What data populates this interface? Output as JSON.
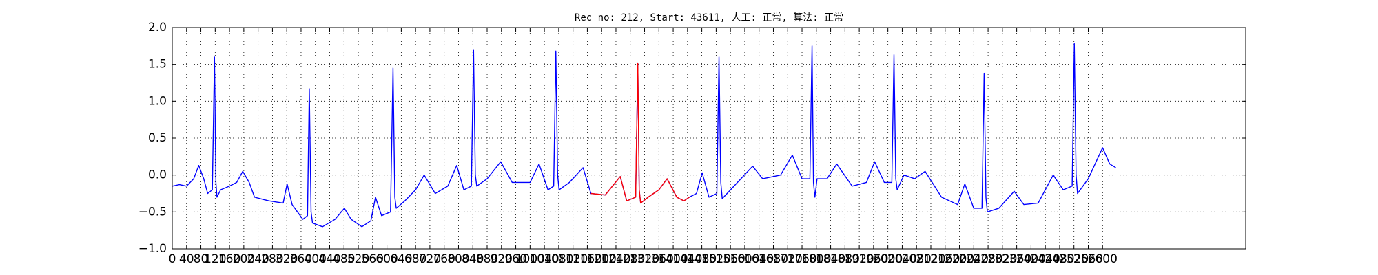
{
  "chart_data": {
    "type": "line",
    "title": "Rec_no: 212, Start: 43611, 人工: 正常, 算法: 正常",
    "xlim": [
      0,
      3000
    ],
    "ylim": [
      -1.0,
      2.0
    ],
    "xticks": [
      0,
      40,
      80,
      120,
      160,
      200,
      240,
      280,
      320,
      360,
      400,
      440,
      480,
      520,
      560,
      600,
      640,
      680,
      720,
      760,
      800,
      840,
      880,
      920,
      960,
      1000,
      1040,
      1080,
      1120,
      1160,
      1200,
      1240,
      1280,
      1320,
      1360,
      1400,
      1440,
      1480,
      1520,
      1560,
      1600,
      1640,
      1680,
      1720,
      1760,
      1800,
      1840,
      1880,
      1920,
      1960,
      2000,
      2040,
      2080,
      2120,
      2160,
      2200,
      2240,
      2280,
      2320,
      2360,
      2400,
      2440,
      2480,
      2520,
      2560,
      2600
    ],
    "yticks": [
      {
        "value": -1.0,
        "label": "−1.0"
      },
      {
        "value": -0.5,
        "label": "−0.5"
      },
      {
        "value": 0.0,
        "label": "0.0"
      },
      {
        "value": 0.5,
        "label": "0.5"
      },
      {
        "value": 1.0,
        "label": "1.0"
      },
      {
        "value": 1.5,
        "label": "1.5"
      },
      {
        "value": 2.0,
        "label": "2.0"
      }
    ],
    "grid": true,
    "series": [
      {
        "color": "#0000ff",
        "x": [
          0,
          20,
          40,
          60,
          74,
          88,
          99,
          112,
          118,
          122,
          125,
          135,
          160,
          180,
          197,
          215,
          230,
          270,
          310,
          321,
          335,
          350,
          365,
          378,
          383,
          388,
          392,
          420,
          455,
          481,
          500,
          530,
          555,
          568,
          585,
          610,
          617,
          622,
          626,
          650,
          680,
          704,
          735,
          770,
          795,
          815,
          836,
          842,
          847,
          851,
          880,
          918,
          950,
          1000,
          1025,
          1050,
          1066,
          1072,
          1077,
          1081,
          1110,
          1148,
          1170,
          1210,
          1252,
          1270,
          1295,
          1301,
          1305,
          1309,
          1330,
          1360,
          1383,
          1410,
          1430,
          1445,
          1465,
          1481,
          1500,
          1522,
          1528,
          1533,
          1537,
          1570,
          1622,
          1650,
          1700,
          1733,
          1760,
          1782,
          1788,
          1792,
          1796,
          1802,
          1830,
          1857,
          1900,
          1940,
          1963,
          1990,
          2011,
          2017,
          2022,
          2026,
          2045,
          2075,
          2104,
          2150,
          2195,
          2215,
          2240,
          2263,
          2269,
          2274,
          2278,
          2310,
          2353,
          2380,
          2420,
          2462,
          2490,
          2515,
          2521,
          2526,
          2530,
          2560,
          2600,
          2620,
          2637
        ],
        "values": [
          -0.15,
          -0.13,
          -0.15,
          -0.05,
          0.13,
          -0.05,
          -0.25,
          -0.2,
          1.6,
          -0.1,
          -0.3,
          -0.2,
          -0.15,
          -0.1,
          0.05,
          -0.1,
          -0.3,
          -0.35,
          -0.38,
          -0.12,
          -0.4,
          -0.5,
          -0.6,
          -0.55,
          1.17,
          -0.5,
          -0.65,
          -0.7,
          -0.6,
          -0.45,
          -0.6,
          -0.7,
          -0.62,
          -0.3,
          -0.55,
          -0.5,
          1.45,
          -0.3,
          -0.45,
          -0.35,
          -0.2,
          0.0,
          -0.25,
          -0.15,
          0.13,
          -0.2,
          -0.15,
          1.7,
          0.0,
          -0.15,
          -0.05,
          0.18,
          -0.1,
          -0.1,
          0.15,
          -0.2,
          -0.15,
          1.68,
          0.0,
          -0.2,
          -0.1,
          0.1,
          -0.25,
          -0.27,
          -0.02,
          -0.35,
          -0.3,
          1.52,
          -0.2,
          -0.38,
          -0.3,
          -0.2,
          -0.05,
          -0.3,
          -0.35,
          -0.3,
          -0.25,
          0.03,
          -0.3,
          -0.25,
          1.6,
          -0.1,
          -0.32,
          -0.15,
          0.12,
          -0.05,
          0.0,
          0.27,
          -0.05,
          -0.05,
          1.75,
          -0.1,
          -0.3,
          -0.05,
          -0.05,
          0.15,
          -0.15,
          -0.1,
          0.18,
          -0.1,
          -0.1,
          1.63,
          -0.05,
          -0.2,
          0.0,
          -0.05,
          0.05,
          -0.3,
          -0.4,
          -0.12,
          -0.45,
          -0.45,
          1.38,
          -0.3,
          -0.5,
          -0.45,
          -0.22,
          -0.4,
          -0.38,
          0.0,
          -0.2,
          -0.15,
          1.78,
          0.0,
          -0.25,
          -0.05,
          0.37,
          0.15,
          0.1
        ]
      },
      {
        "color": "#ff0000",
        "x": [
          1170,
          1210,
          1252,
          1270,
          1295,
          1301,
          1305,
          1309,
          1330,
          1360,
          1383,
          1410,
          1430,
          1445
        ],
        "values": [
          -0.25,
          -0.27,
          -0.02,
          -0.35,
          -0.3,
          1.52,
          -0.2,
          -0.38,
          -0.3,
          -0.2,
          -0.05,
          -0.3,
          -0.35,
          -0.3
        ]
      }
    ]
  }
}
